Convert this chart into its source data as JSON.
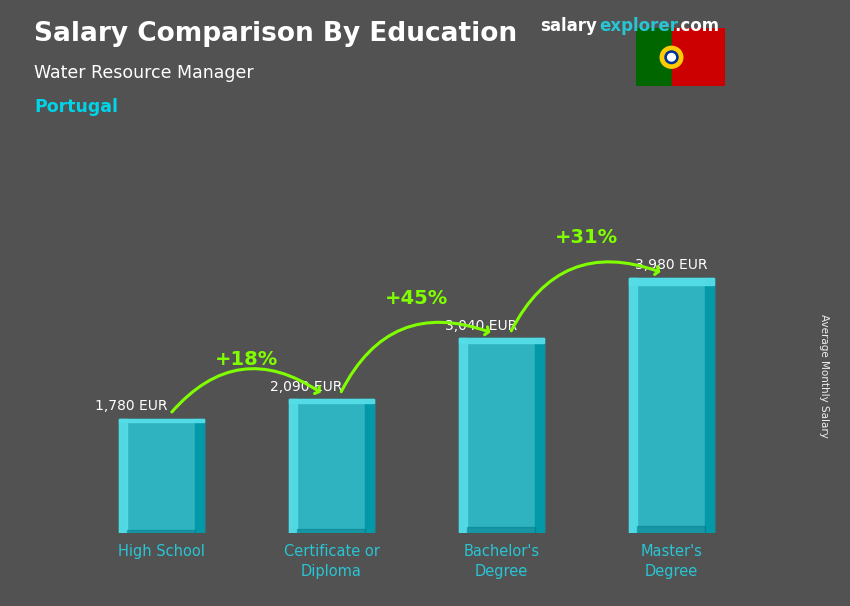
{
  "title_bold": "Salary Comparison By Education",
  "subtitle": "Water Resource Manager",
  "location": "Portugal",
  "ylabel": "Average Monthly Salary",
  "categories": [
    "High School",
    "Certificate or\nDiploma",
    "Bachelor's\nDegree",
    "Master's\nDegree"
  ],
  "values": [
    1780,
    2090,
    3040,
    3980
  ],
  "value_labels": [
    "1,780 EUR",
    "2,090 EUR",
    "3,040 EUR",
    "3,980 EUR"
  ],
  "pct_annotations": [
    {
      "pct": "+18%",
      "from_bar": 0,
      "to_bar": 1
    },
    {
      "pct": "+45%",
      "from_bar": 1,
      "to_bar": 2
    },
    {
      "pct": "+31%",
      "from_bar": 2,
      "to_bar": 3
    }
  ],
  "bar_color_main": "#29c5d4",
  "bar_color_light": "#55dde8",
  "bar_color_dark": "#0097a7",
  "bar_color_shadow": "#007b8a",
  "bg_color": "#525252",
  "title_color": "#ffffff",
  "subtitle_color": "#ffffff",
  "location_color": "#00d4e8",
  "value_label_color": "#ffffff",
  "pct_color": "#7fff00",
  "arrow_color": "#7fff00",
  "xtick_color": "#29c5d4",
  "ylim": [
    0,
    5200
  ],
  "bar_width": 0.5,
  "watermark_salary_color": "#ffffff",
  "watermark_explorer_color": "#29c5d4",
  "watermark_com_color": "#ffffff",
  "flag_green": "#006600",
  "flag_red": "#cc0000",
  "flag_yellow": "#ffcc00"
}
